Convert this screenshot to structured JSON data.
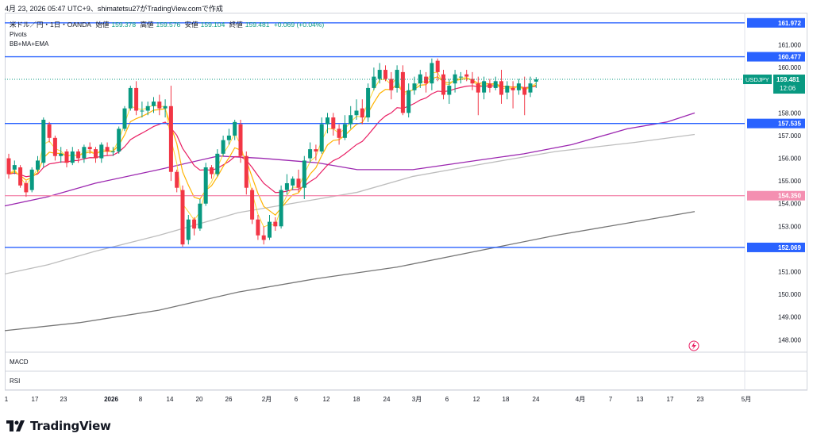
{
  "header": {
    "text": "4月 23, 2026 05:47 UTC+9、shimatetsu27がTradingView.comで作成"
  },
  "symbol": {
    "name": "米ドル／円・1日・OANDA",
    "open_label": "始値",
    "open": "159.378",
    "high_label": "高値",
    "high": "159.576",
    "low_label": "安値",
    "low": "159.104",
    "close_label": "終値",
    "close": "159.481",
    "change": "+0.069 (+0.04%)"
  },
  "indicators": {
    "pivots": "Pivots",
    "bbmaema": "BB+MA+EMA",
    "macd": "MACD",
    "rsi": "RSI"
  },
  "price_axis": {
    "ticks": [
      "161.000",
      "160.000",
      "159.000",
      "158.000",
      "157.000",
      "156.000",
      "155.000",
      "154.000",
      "153.000",
      "152.000",
      "151.000",
      "150.000",
      "149.000",
      "148.000"
    ]
  },
  "horizontal_levels": [
    {
      "price": "161.972",
      "color": "#2962ff"
    },
    {
      "price": "160.477",
      "color": "#2962ff"
    },
    {
      "price": "157.535",
      "color": "#2962ff"
    },
    {
      "price": "154.350",
      "color": "#f48fb1"
    },
    {
      "price": "152.069",
      "color": "#2962ff"
    }
  ],
  "last_price": {
    "symbol": "USDJPY",
    "price": "159.481",
    "countdown": "12:06"
  },
  "time_axis": {
    "labels": [
      "1",
      "17",
      "23",
      "2026",
      "8",
      "14",
      "20",
      "26",
      "2月",
      "6",
      "12",
      "18",
      "24",
      "3月",
      "6",
      "12",
      "18",
      "24",
      "4月",
      "7",
      "13",
      "17",
      "23",
      "5月"
    ]
  },
  "colors": {
    "up": "#089981",
    "down": "#f23645",
    "level": "#2962ff",
    "pink_level": "#f48fb1",
    "bb_mid": "#9c27b0",
    "ema_fast": "#ffb300",
    "ema_slow": "#e91e63",
    "ma_long": "#bdbdbd",
    "ma_longest": "#757575"
  },
  "footer": {
    "brand": "TradingView"
  },
  "chart_data": {
    "type": "candlestick",
    "y_range": [
      147.45,
      162.35
    ],
    "candles": [
      [
        156.0,
        155.3,
        156.2,
        155.1
      ],
      [
        155.5,
        155.7,
        155.9,
        155.3
      ],
      [
        155.6,
        154.8,
        155.7,
        154.7
      ],
      [
        154.9,
        154.5,
        155.0,
        154.3
      ],
      [
        154.6,
        155.5,
        155.6,
        154.5
      ],
      [
        155.5,
        155.9,
        156.1,
        155.4
      ],
      [
        155.8,
        157.7,
        157.8,
        155.6
      ],
      [
        157.5,
        156.9,
        157.6,
        156.7
      ],
      [
        156.9,
        156.1,
        157.0,
        155.9
      ],
      [
        156.1,
        156.2,
        156.5,
        155.8
      ],
      [
        156.3,
        155.8,
        156.4,
        155.6
      ],
      [
        155.8,
        156.3,
        156.5,
        155.7
      ],
      [
        156.3,
        156.0,
        156.4,
        155.8
      ],
      [
        156.0,
        156.5,
        156.6,
        155.8
      ],
      [
        156.5,
        156.4,
        156.7,
        156.2
      ],
      [
        156.4,
        156.0,
        156.5,
        155.8
      ],
      [
        156.0,
        156.6,
        156.7,
        155.8
      ],
      [
        156.5,
        156.3,
        156.7,
        156.1
      ],
      [
        156.3,
        156.3,
        156.5,
        156.1
      ],
      [
        156.3,
        157.3,
        157.4,
        156.2
      ],
      [
        157.3,
        158.2,
        158.3,
        157.2
      ],
      [
        158.2,
        159.1,
        159.2,
        158.1
      ],
      [
        159.1,
        158.1,
        159.4,
        157.9
      ],
      [
        158.1,
        158.1,
        158.5,
        157.8
      ],
      [
        158.1,
        158.3,
        158.5,
        157.9
      ],
      [
        158.3,
        158.5,
        158.7,
        158.0
      ],
      [
        158.5,
        158.2,
        158.8,
        157.9
      ],
      [
        158.2,
        158.3,
        158.6,
        157.8
      ],
      [
        158.3,
        155.4,
        159.2,
        155.0
      ],
      [
        155.4,
        154.7,
        155.5,
        154.5
      ],
      [
        154.6,
        152.2,
        154.8,
        152.1
      ],
      [
        152.4,
        153.3,
        153.5,
        152.2
      ],
      [
        153.3,
        152.9,
        153.4,
        152.6
      ],
      [
        152.9,
        154.0,
        154.2,
        152.8
      ],
      [
        154.0,
        155.6,
        155.8,
        153.9
      ],
      [
        155.6,
        155.3,
        155.7,
        155.1
      ],
      [
        155.3,
        156.2,
        156.4,
        155.2
      ],
      [
        156.2,
        156.8,
        157.0,
        156.1
      ],
      [
        156.8,
        157.0,
        157.3,
        156.6
      ],
      [
        157.0,
        157.6,
        157.7,
        156.8
      ],
      [
        157.5,
        156.1,
        157.7,
        155.8
      ],
      [
        156.1,
        154.7,
        156.3,
        154.4
      ],
      [
        154.6,
        153.3,
        154.7,
        153.1
      ],
      [
        153.3,
        152.6,
        153.5,
        152.4
      ],
      [
        152.6,
        152.4,
        153.0,
        152.2
      ],
      [
        152.5,
        153.2,
        153.5,
        152.4
      ],
      [
        153.2,
        153.0,
        153.4,
        152.8
      ],
      [
        153.0,
        154.6,
        154.8,
        152.9
      ],
      [
        154.6,
        154.9,
        155.3,
        154.4
      ],
      [
        154.8,
        155.1,
        155.2,
        154.6
      ],
      [
        155.1,
        154.7,
        155.5,
        154.5
      ],
      [
        154.7,
        155.9,
        156.1,
        154.2
      ],
      [
        156.0,
        156.4,
        156.7,
        155.8
      ],
      [
        156.4,
        156.3,
        156.6,
        155.9
      ],
      [
        156.3,
        157.5,
        157.8,
        156.2
      ],
      [
        157.5,
        157.8,
        158.0,
        157.1
      ],
      [
        157.8,
        157.3,
        158.0,
        157.0
      ],
      [
        157.3,
        156.9,
        157.5,
        156.6
      ],
      [
        156.9,
        157.5,
        157.9,
        156.8
      ],
      [
        157.5,
        157.9,
        158.3,
        157.3
      ],
      [
        157.9,
        158.1,
        158.6,
        157.7
      ],
      [
        158.2,
        157.8,
        158.6,
        157.5
      ],
      [
        157.8,
        159.1,
        159.3,
        157.6
      ],
      [
        159.1,
        159.6,
        160.0,
        159.0
      ],
      [
        159.5,
        159.9,
        160.2,
        159.3
      ],
      [
        159.9,
        159.5,
        160.1,
        159.4
      ],
      [
        159.5,
        159.0,
        159.8,
        158.6
      ],
      [
        159.1,
        159.9,
        160.1,
        158.9
      ],
      [
        159.8,
        158.0,
        160.1,
        157.9
      ],
      [
        158.0,
        159.0,
        159.3,
        157.8
      ],
      [
        159.0,
        159.3,
        159.6,
        158.8
      ],
      [
        159.3,
        159.7,
        159.9,
        159.1
      ],
      [
        159.6,
        159.3,
        159.8,
        158.9
      ],
      [
        159.3,
        160.2,
        160.4,
        159.0
      ],
      [
        160.3,
        159.8,
        160.4,
        159.4
      ],
      [
        159.7,
        158.8,
        159.9,
        158.6
      ],
      [
        158.8,
        159.2,
        159.5,
        158.4
      ],
      [
        159.3,
        159.7,
        159.9,
        158.9
      ],
      [
        159.6,
        159.6,
        159.8,
        159.3
      ],
      [
        159.7,
        159.6,
        159.9,
        159.4
      ],
      [
        159.5,
        159.3,
        159.8,
        159.0
      ],
      [
        159.3,
        158.9,
        159.6,
        157.9
      ],
      [
        158.9,
        159.4,
        159.6,
        158.6
      ],
      [
        159.3,
        159.1,
        159.5,
        158.9
      ],
      [
        159.1,
        159.4,
        159.6,
        159.0
      ],
      [
        159.4,
        158.8,
        159.9,
        158.4
      ],
      [
        158.9,
        159.2,
        159.4,
        158.6
      ],
      [
        159.1,
        159.0,
        159.4,
        158.2
      ],
      [
        159.0,
        159.3,
        159.5,
        158.8
      ],
      [
        159.1,
        158.8,
        159.6,
        157.9
      ],
      [
        158.9,
        159.3,
        159.6,
        158.7
      ],
      [
        159.38,
        159.48,
        159.58,
        159.1
      ]
    ],
    "candle_x_start": 11,
    "candle_x_step": 7.3
  }
}
